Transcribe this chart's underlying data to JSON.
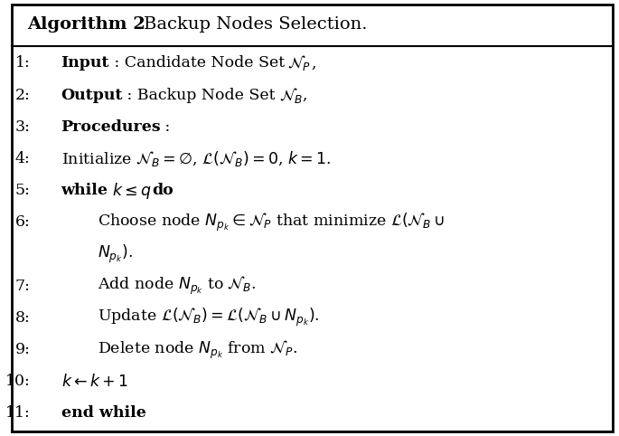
{
  "title": "Algorithm 2",
  "title_suffix": " Backup Nodes Selection.",
  "bg_color": "#ffffff",
  "border_color": "#000000",
  "header_line_color": "#000000",
  "text_color": "#000000",
  "figsize": [
    6.85,
    4.82
  ],
  "dpi": 100,
  "lines": [
    {
      "num": "1:",
      "indent": 0,
      "parts": [
        {
          "text": "Input",
          "bold": true
        },
        {
          "text": " : Candidate Node Set ",
          "bold": false
        },
        {
          "text": "$\\mathcal{N}_P$",
          "bold": false,
          "math": true
        },
        {
          "text": ",",
          "bold": false
        }
      ]
    },
    {
      "num": "2:",
      "indent": 0,
      "parts": [
        {
          "text": "Output",
          "bold": true
        },
        {
          "text": " : Backup Node Set ",
          "bold": false
        },
        {
          "text": "$\\mathcal{N}_B$",
          "bold": false,
          "math": true
        },
        {
          "text": ",",
          "bold": false
        }
      ]
    },
    {
      "num": "3:",
      "indent": 0,
      "parts": [
        {
          "text": "Procedures",
          "bold": true
        },
        {
          "text": " :",
          "bold": false
        }
      ]
    },
    {
      "num": "4:",
      "indent": 0,
      "parts": [
        {
          "text": "Initialize $\\mathcal{N}_B = \\emptyset$, $\\mathcal{L}(\\mathcal{N}_B) = 0$, $k = 1$.",
          "bold": false
        }
      ]
    },
    {
      "num": "5:",
      "indent": 0,
      "parts": [
        {
          "text": "while",
          "bold": true
        },
        {
          "text": " $k \\leq q$ ",
          "bold": false
        },
        {
          "text": "do",
          "bold": true
        }
      ]
    },
    {
      "num": "6:",
      "indent": 1,
      "parts": [
        {
          "text": "Choose node $N_{p_k} \\in \\mathcal{N}_P$ that minimize $\\mathcal{L}(\\mathcal{N}_B \\cup$",
          "bold": false
        }
      ]
    },
    {
      "num": "",
      "indent": 1,
      "parts": [
        {
          "text": "$N_{p_k})$.",
          "bold": false
        }
      ]
    },
    {
      "num": "7:",
      "indent": 1,
      "parts": [
        {
          "text": "Add node $N_{p_k}$ to $\\mathcal{N}_B$.",
          "bold": false
        }
      ]
    },
    {
      "num": "8:",
      "indent": 1,
      "parts": [
        {
          "text": "Update $\\mathcal{L}(\\mathcal{N}_B) = \\mathcal{L}(\\mathcal{N}_B \\cup N_{p_k})$.",
          "bold": false
        }
      ]
    },
    {
      "num": "9:",
      "indent": 1,
      "parts": [
        {
          "text": "Delete node $N_{p_k}$ from $\\mathcal{N}_P$.",
          "bold": false
        }
      ]
    },
    {
      "num": "10:",
      "indent": 0,
      "parts": [
        {
          "text": "$k \\leftarrow k + 1$",
          "bold": false
        }
      ]
    },
    {
      "num": "11:",
      "indent": 0,
      "parts": [
        {
          "text": "end while",
          "bold": true
        }
      ]
    }
  ]
}
